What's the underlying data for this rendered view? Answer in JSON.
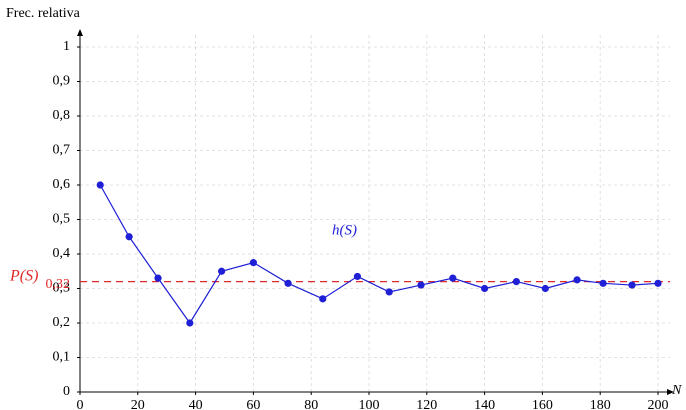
{
  "chart_data": {
    "type": "line",
    "y_label": "Frec. relativa",
    "x_label": "N",
    "x": [
      7,
      17,
      27,
      38,
      49,
      60,
      72,
      84,
      96,
      107,
      118,
      129,
      140,
      151,
      161,
      172,
      181,
      191,
      200
    ],
    "series": [
      {
        "name": "h(S)",
        "color": "#1f1fd6",
        "values": [
          0.6,
          0.45,
          0.33,
          0.2,
          0.35,
          0.375,
          0.315,
          0.27,
          0.335,
          0.29,
          0.31,
          0.33,
          0.3,
          0.32,
          0.3,
          0.325,
          0.315,
          0.31,
          0.315
        ]
      }
    ],
    "reference_line": {
      "name": "P(S)",
      "value": 0.32,
      "label": "0,32",
      "color": "#e02828"
    },
    "xlim": [
      0,
      200
    ],
    "xticks": [
      0,
      20,
      40,
      60,
      80,
      100,
      120,
      140,
      160,
      180,
      200
    ],
    "ylim": [
      0,
      1
    ],
    "yticks": [
      0,
      {
        "value": 0.1,
        "label": "0,1"
      },
      {
        "value": 0.2,
        "label": "0,2"
      },
      {
        "value": 0.3,
        "label": "0,3"
      },
      {
        "value": 0.4,
        "label": "0,4"
      },
      {
        "value": 0.5,
        "label": "0,5"
      },
      {
        "value": 0.6,
        "label": "0,6"
      },
      {
        "value": 0.7,
        "label": "0,7"
      },
      {
        "value": 0.8,
        "label": "0,8"
      },
      {
        "value": 0.9,
        "label": "0,9"
      },
      1
    ],
    "grid": true
  }
}
